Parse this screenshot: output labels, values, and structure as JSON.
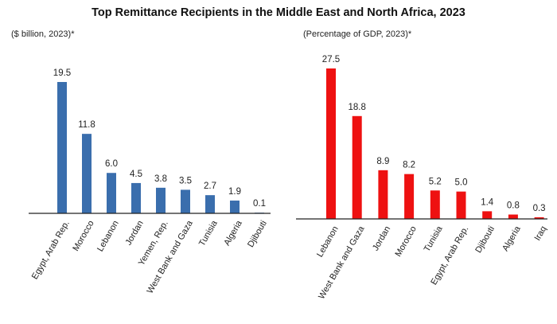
{
  "title": "Top Remittance Recipients in the Middle East and North Africa, 2023",
  "chart_data": [
    {
      "type": "bar",
      "subtitle": "($ billion, 2023)*",
      "color": "#3a6ead",
      "categories": [
        "Egypt, Arab Rep.",
        "Morocco",
        "Lebanon",
        "Jordan",
        "Yemen, Rep.",
        "West Bank and Gaza",
        "Tunisia",
        "Algeria",
        "Djibouti"
      ],
      "values": [
        19.5,
        11.8,
        6.0,
        4.5,
        3.8,
        3.5,
        2.7,
        1.9,
        0.1
      ],
      "data_labels": [
        "19.5",
        "11.8",
        "6.0",
        "4.5",
        "3.8",
        "3.5",
        "2.7",
        "1.9",
        "0.1"
      ],
      "ylim": [
        0,
        19.5
      ],
      "grid": false,
      "legend": "none"
    },
    {
      "type": "bar",
      "subtitle": "(Percentage of GDP, 2023)*",
      "color": "#ee1111",
      "categories": [
        "Lebanon",
        "West Bank and Gaza",
        "Jordan",
        "Morocco",
        "Tunisia",
        "Egypt, Arab Rep.",
        "Djibouti",
        "Algeria",
        "Iraq"
      ],
      "values": [
        27.5,
        18.8,
        8.9,
        8.2,
        5.2,
        5.0,
        1.4,
        0.8,
        0.3
      ],
      "data_labels": [
        "27.5",
        "18.8",
        "8.9",
        "8.2",
        "5.2",
        "5.0",
        "1.4",
        "0.8",
        "0.3"
      ],
      "ylim": [
        0,
        27.5
      ],
      "grid": false,
      "legend": "none"
    }
  ]
}
